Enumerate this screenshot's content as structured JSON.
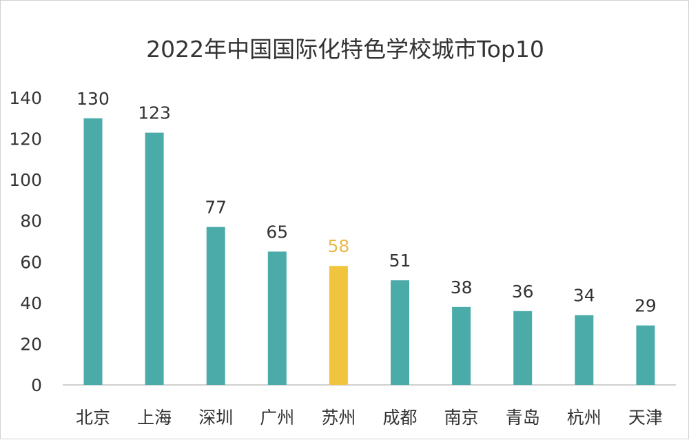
{
  "chart_data": {
    "type": "bar",
    "title": "2022年中国国际化特色学校城市Top10",
    "categories": [
      "北京",
      "上海",
      "深圳",
      "广州",
      "苏州",
      "成都",
      "南京",
      "青岛",
      "杭州",
      "天津"
    ],
    "values": [
      130,
      123,
      77,
      65,
      58,
      51,
      38,
      36,
      34,
      29
    ],
    "highlight_category": "苏州",
    "xlabel": "",
    "ylabel": "",
    "ylim": [
      0,
      140
    ],
    "yticks": [
      0,
      20,
      40,
      60,
      80,
      100,
      120,
      140
    ],
    "grid": false,
    "data_labels": true,
    "colors": {
      "bar": "#4aaba9",
      "highlight": "#f0c43c",
      "highlight_label": "#e8b84a",
      "text": "#333333",
      "axis": "#bfbfbf"
    }
  }
}
